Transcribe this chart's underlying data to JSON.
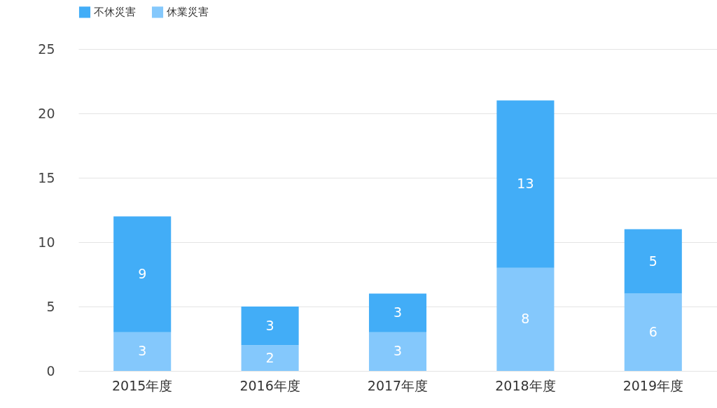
{
  "chart_data": {
    "type": "bar",
    "stacked": true,
    "categories": [
      "2015年度",
      "2016年度",
      "2017年度",
      "2018年度",
      "2019年度"
    ],
    "series": [
      {
        "name": "休業災害",
        "color": "#84c8fc",
        "values": [
          3,
          2,
          3,
          8,
          6
        ]
      },
      {
        "name": "不休災害",
        "color": "#42adf7",
        "values": [
          9,
          3,
          3,
          13,
          5
        ]
      }
    ],
    "ylim": [
      0,
      25
    ],
    "yticks": [
      0,
      5,
      10,
      15,
      20,
      25
    ],
    "grid": "y",
    "legend": "top left",
    "data_labels": true
  }
}
